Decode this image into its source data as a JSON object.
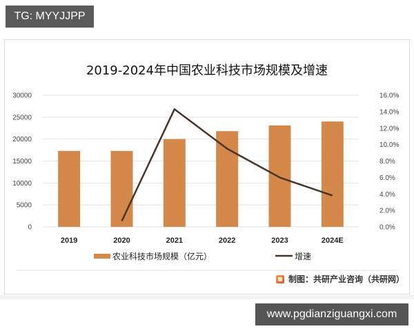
{
  "badges": {
    "top_left": "TG: MYYJJPP",
    "bottom_right": "www.pgdianziguangxi.com"
  },
  "chart": {
    "title": "2019-2024年中国农业科技市场规模及增速",
    "legend": {
      "bar_label": "农业科技市场规模（亿元）",
      "line_label": "增速"
    },
    "source": "制图：共研产业咨询（共研网）",
    "colors": {
      "bar": "#D4884A",
      "line": "#4A3428",
      "grid": "#E2E2E2"
    }
  },
  "chart_data": {
    "type": "bar",
    "title": "2019-2024年中国农业科技市场规模及增速",
    "categories": [
      "2019",
      "2020",
      "2021",
      "2022",
      "2023",
      "2024E"
    ],
    "series": [
      {
        "name": "农业科技市场规模（亿元）",
        "type": "bar",
        "axis": "left",
        "values": [
          17300,
          17300,
          20000,
          21800,
          23100,
          24000
        ]
      },
      {
        "name": "增速",
        "type": "line",
        "axis": "right",
        "values": [
          null,
          0.7,
          14.3,
          9.5,
          6.0,
          3.8
        ],
        "unit": "%"
      }
    ],
    "left_axis": {
      "ylim": [
        0,
        30000
      ],
      "ticks": [
        "0",
        "5000",
        "10000",
        "15000",
        "20000",
        "25000",
        "30000"
      ]
    },
    "right_axis": {
      "ylim": [
        0,
        16
      ],
      "ticks": [
        "0.0%",
        "2.0%",
        "4.0%",
        "6.0%",
        "8.0%",
        "10.0%",
        "12.0%",
        "14.0%",
        "16.0%"
      ]
    },
    "xlabel": "",
    "ylabel": "",
    "grid": true,
    "legend_position": "bottom"
  }
}
